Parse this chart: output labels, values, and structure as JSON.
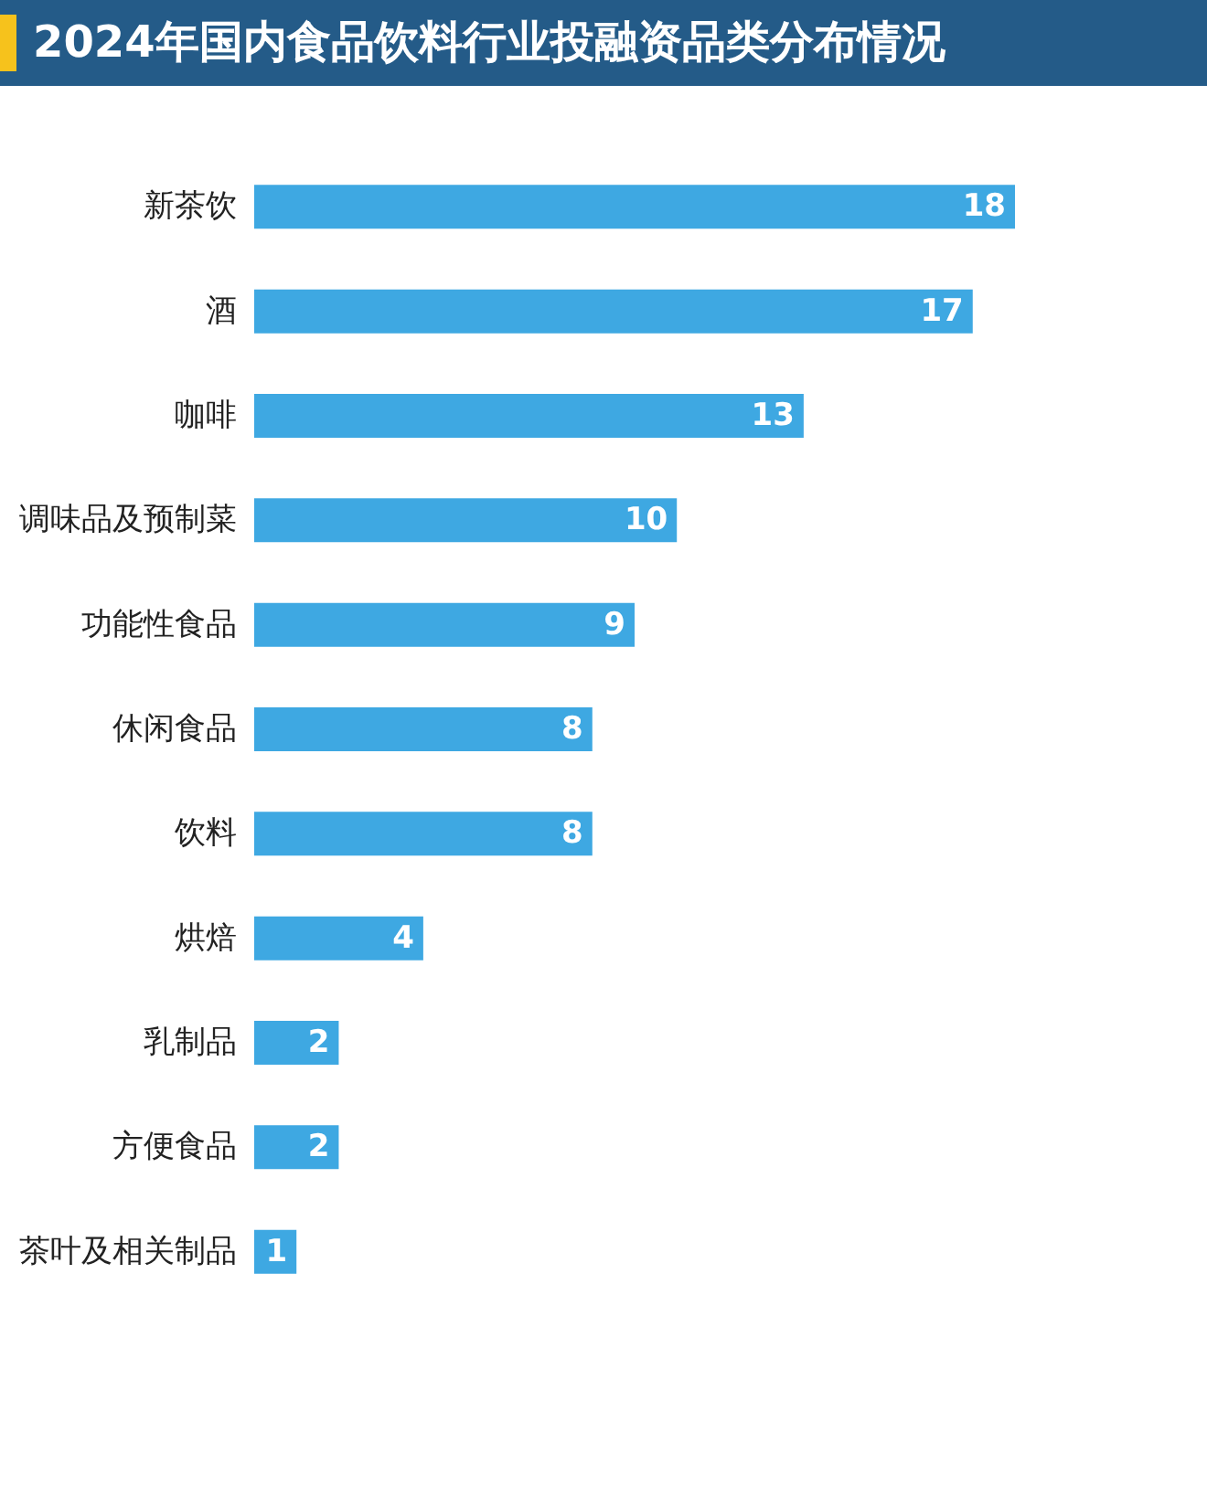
{
  "chart_data": {
    "type": "bar",
    "orientation": "horizontal",
    "title": "2024年国内食品饮料行业投融资品类分布情况",
    "categories": [
      "新茶饮",
      "酒",
      "咖啡",
      "调味品及预制菜",
      "功能性食品",
      "休闲食品",
      "饮料",
      "烘焙",
      "乳制品",
      "方便食品",
      "茶叶及相关制品"
    ],
    "values": [
      18,
      17,
      13,
      10,
      9,
      8,
      8,
      4,
      2,
      2,
      1
    ],
    "color": "#3ea8e2",
    "data_labels": true
  }
}
